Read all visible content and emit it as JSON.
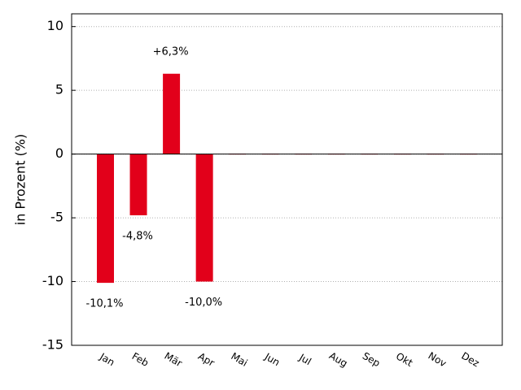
{
  "chart_data": {
    "type": "bar",
    "y_label": "in Prozent (%)",
    "categories": [
      "Jan",
      "Feb",
      "Mär",
      "Apr",
      "Mai",
      "Jun",
      "Jul",
      "Aug",
      "Sep",
      "Okt",
      "Nov",
      "Dez"
    ],
    "values": [
      -10.1,
      -4.8,
      6.3,
      -10.0,
      0,
      0,
      0,
      0,
      0,
      0,
      0,
      0
    ],
    "value_labels": [
      "-10,1%",
      "-4,8%",
      "+6,3%",
      "-10,0%",
      null,
      null,
      null,
      null,
      null,
      null,
      null,
      null
    ],
    "color": "#e2001a",
    "ylim": [
      -15,
      11
    ],
    "yticks": [
      -15,
      -10,
      -5,
      0,
      5,
      10
    ],
    "grid": true
  }
}
